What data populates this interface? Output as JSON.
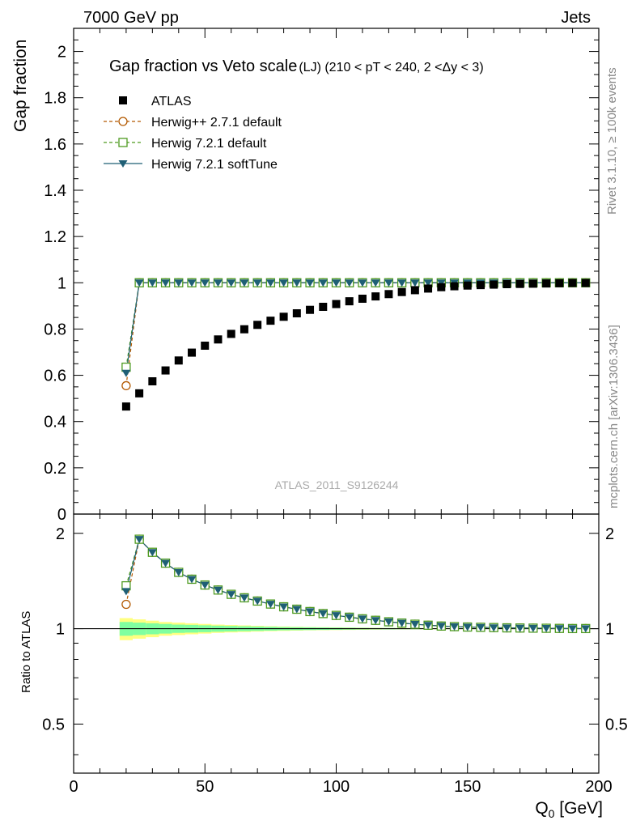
{
  "header": {
    "left": "7000 GeV pp",
    "right": "Jets"
  },
  "side_labels": {
    "rivet": "Rivet 3.1.10, ≥ 100k events",
    "mcplots": "mcplots.cern.ch [arXiv:1306.3436]"
  },
  "chart_data": {
    "type": "scatter",
    "title": "Gap fraction vs Veto scale",
    "subtitle": "(LJ) (210 < pT < 240, 2 <Δy < 3)",
    "watermark": "ATLAS_2011_S9126244",
    "xlabel": "Q",
    "xlabel_sub": "0",
    "xlabel_unit": " [GeV]",
    "ylabel": "Gap fraction",
    "ratio_ylabel": "Ratio to ATLAS",
    "xlim": [
      0,
      200
    ],
    "ylim": [
      0,
      2.1
    ],
    "ratio_ylim": [
      0.35,
      2.3
    ],
    "x_ticks": [
      0,
      50,
      100,
      150,
      200
    ],
    "y_ticks": [
      0,
      0.2,
      0.4,
      0.6,
      0.8,
      1,
      1.2,
      1.4,
      1.6,
      1.8,
      2
    ],
    "y_tick_labels": [
      "0",
      "0.2",
      "0.4",
      "0.6",
      "0.8",
      "1",
      "1.2",
      "1.4",
      "1.6",
      "1.8",
      "2"
    ],
    "ratio_ticks": [
      0.5,
      1,
      2
    ],
    "ratio_tick_labels": [
      "0.5",
      "1",
      "2"
    ],
    "legend_position": "top-left",
    "x": [
      20,
      25,
      30,
      35,
      40,
      45,
      50,
      55,
      60,
      65,
      70,
      75,
      80,
      85,
      90,
      95,
      100,
      105,
      110,
      115,
      120,
      125,
      130,
      135,
      140,
      145,
      150,
      155,
      160,
      165,
      170,
      175,
      180,
      185,
      190,
      195
    ],
    "series": [
      {
        "name": "ATLAS",
        "color": "#000000",
        "marker": "filled-square",
        "values": [
          0.465,
          0.522,
          0.574,
          0.621,
          0.664,
          0.698,
          0.728,
          0.755,
          0.779,
          0.799,
          0.818,
          0.836,
          0.853,
          0.868,
          0.883,
          0.896,
          0.908,
          0.92,
          0.931,
          0.941,
          0.951,
          0.96,
          0.968,
          0.975,
          0.981,
          0.985,
          0.988,
          0.99,
          0.992,
          0.994,
          0.995,
          0.996,
          0.997,
          0.998,
          0.999,
          0.999
        ]
      },
      {
        "name": "Herwig++ 2.7.1 default",
        "color": "#b35900",
        "marker": "open-circle",
        "dash": "4,3",
        "values": [
          0.555,
          1.0,
          1.0,
          1.0,
          1.0,
          1.0,
          1.0,
          1.0,
          1.0,
          1.0,
          1.0,
          1.0,
          1.0,
          1.0,
          1.0,
          1.0,
          1.0,
          1.0,
          1.0,
          1.0,
          1.0,
          1.0,
          1.0,
          1.0,
          1.0,
          1.0,
          1.0,
          1.0,
          1.0,
          1.0,
          1.0,
          1.0,
          1.0,
          1.0,
          1.0,
          1.0
        ]
      },
      {
        "name": "Herwig 7.2.1 default",
        "color": "#4d9a1f",
        "marker": "open-square",
        "dash": "4,3",
        "values": [
          0.635,
          1.0,
          1.0,
          1.0,
          1.0,
          1.0,
          1.0,
          1.0,
          1.0,
          1.0,
          1.0,
          1.0,
          1.0,
          1.0,
          1.0,
          1.0,
          1.0,
          1.0,
          1.0,
          1.0,
          1.0,
          1.0,
          1.0,
          1.0,
          1.0,
          1.0,
          1.0,
          1.0,
          1.0,
          1.0,
          1.0,
          1.0,
          1.0,
          1.0,
          1.0,
          1.0
        ]
      },
      {
        "name": "Herwig 7.2.1 softTune",
        "color": "#1f5f75",
        "marker": "filled-triangle-down",
        "values": [
          0.61,
          1.0,
          1.0,
          1.0,
          1.0,
          1.0,
          1.0,
          1.0,
          1.0,
          1.0,
          1.0,
          1.0,
          1.0,
          1.0,
          1.0,
          1.0,
          1.0,
          1.0,
          1.0,
          1.0,
          1.0,
          1.0,
          1.0,
          1.0,
          1.0,
          1.0,
          1.0,
          1.0,
          1.0,
          1.0,
          1.0,
          1.0,
          1.0,
          1.0,
          1.0,
          1.0
        ]
      }
    ],
    "uncertainty_band": {
      "inner_color": "#80ffa0",
      "outer_color": "#ffff80",
      "inner_rel": [
        0.05,
        0.045,
        0.04,
        0.035,
        0.03,
        0.028,
        0.025,
        0.022,
        0.02,
        0.018,
        0.016,
        0.014,
        0.012,
        0.011,
        0.01,
        0.009,
        0.008,
        0.007,
        0.006,
        0.005,
        0.005,
        0.004,
        0.004,
        0.003,
        0.003,
        0.003,
        0.002,
        0.002,
        0.002,
        0.002,
        0.002,
        0.002,
        0.002,
        0.002,
        0.002,
        0.002
      ],
      "outer_rel": [
        0.08,
        0.07,
        0.06,
        0.05,
        0.045,
        0.04,
        0.035,
        0.03,
        0.027,
        0.024,
        0.021,
        0.018,
        0.016,
        0.014,
        0.012,
        0.011,
        0.01,
        0.009,
        0.008,
        0.007,
        0.006,
        0.005,
        0.005,
        0.004,
        0.004,
        0.004,
        0.003,
        0.003,
        0.003,
        0.003,
        0.003,
        0.003,
        0.003,
        0.003,
        0.003,
        0.003
      ]
    }
  }
}
